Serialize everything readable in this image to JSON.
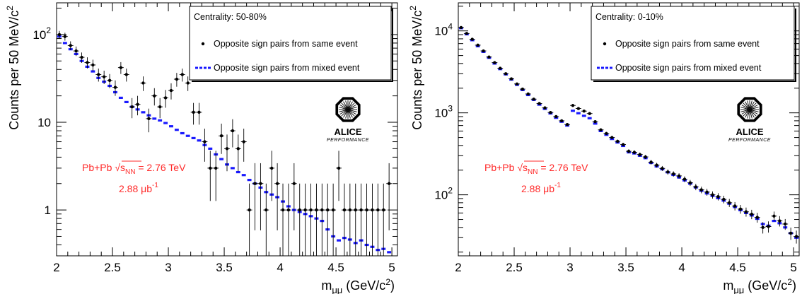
{
  "chart_data": [
    {
      "type": "scatter",
      "xlabel_main": "m",
      "xlabel_sub": "μμ",
      "xlabel_unit": " (GeV/c",
      "xlabel_sup": "2",
      "xlabel_close": ")",
      "ylabel_main": "Counts per 50 MeV/c",
      "ylabel_sup": "2",
      "y_scale": "log",
      "xlim": [
        2,
        5.05
      ],
      "ylim": [
        0.3,
        230
      ],
      "x_ticks": [
        "2",
        "2.5",
        "3",
        "3.5",
        "4",
        "4.5",
        "5"
      ],
      "y_ticks": [
        {
          "base": "1",
          "exp": ""
        },
        {
          "base": "10",
          "exp": ""
        },
        {
          "base": "10",
          "exp": "2"
        }
      ],
      "centrality": "Centrality: 50-80%",
      "legend": [
        {
          "label": "Opposite sign pairs from same event",
          "marker": "dot"
        },
        {
          "label": "Opposite sign pairs from mixed event",
          "marker": "dash"
        }
      ],
      "legend_position": "top-right",
      "annotation_system": "Pb+Pb",
      "annotation_sqrt": "s",
      "annotation_sub": "NN",
      "annotation_energy": "= 2.76 TeV",
      "annotation_lumi_value": "2.88 μb",
      "annotation_lumi_sup": "-1",
      "logo_text": "ALICE",
      "logo_sub": "PERFORMANCE",
      "series": [
        {
          "name": "Opposite sign pairs from same event",
          "color": "#000000",
          "x": [
            2.025,
            2.075,
            2.125,
            2.175,
            2.225,
            2.275,
            2.325,
            2.375,
            2.425,
            2.475,
            2.525,
            2.575,
            2.625,
            2.675,
            2.725,
            2.775,
            2.825,
            2.875,
            2.925,
            2.975,
            3.025,
            3.075,
            3.125,
            3.175,
            3.225,
            3.275,
            3.325,
            3.375,
            3.425,
            3.475,
            3.525,
            3.575,
            3.625,
            3.675,
            3.725,
            3.775,
            3.825,
            3.875,
            3.925,
            3.975,
            4.025,
            4.075,
            4.125,
            4.175,
            4.225,
            4.275,
            4.325,
            4.375,
            4.425,
            4.475,
            4.525,
            4.575,
            4.625,
            4.675,
            4.725,
            4.775,
            4.825,
            4.875,
            4.925,
            4.975
          ],
          "y": [
            100,
            95,
            75,
            65,
            55,
            48,
            45,
            35,
            33,
            30,
            25,
            42,
            35,
            15,
            16,
            28,
            11,
            20,
            15,
            19,
            23,
            31,
            35,
            28,
            13,
            13,
            6,
            3,
            3,
            7,
            5,
            8,
            5,
            6,
            1,
            2,
            2,
            1,
            3,
            2,
            1,
            1,
            2,
            1,
            1,
            1,
            1,
            1,
            1,
            1,
            3,
            1,
            1,
            1,
            1,
            1,
            1,
            1,
            1,
            2
          ]
        },
        {
          "name": "Opposite sign pairs from mixed event",
          "color": "#1a1aff",
          "x": [
            2.025,
            2.075,
            2.125,
            2.175,
            2.225,
            2.275,
            2.325,
            2.375,
            2.425,
            2.475,
            2.525,
            2.575,
            2.625,
            2.675,
            2.725,
            2.775,
            2.825,
            2.875,
            2.925,
            2.975,
            3.025,
            3.075,
            3.125,
            3.175,
            3.225,
            3.275,
            3.325,
            3.375,
            3.425,
            3.475,
            3.525,
            3.575,
            3.625,
            3.675,
            3.725,
            3.775,
            3.825,
            3.875,
            3.925,
            3.975,
            4.025,
            4.075,
            4.125,
            4.175,
            4.225,
            4.275,
            4.325,
            4.375,
            4.425,
            4.475,
            4.525,
            4.575,
            4.625,
            4.675,
            4.725,
            4.775,
            4.825,
            4.875,
            4.925,
            4.975
          ],
          "y": [
            95,
            80,
            68,
            60,
            50,
            43,
            38,
            32,
            29,
            26,
            22,
            19,
            17,
            15,
            14,
            13,
            12,
            11,
            10.5,
            9.8,
            9,
            8.2,
            7.5,
            7,
            6.6,
            6.2,
            5.5,
            5,
            4.3,
            3.8,
            3.3,
            3,
            2.7,
            2.5,
            2.2,
            2,
            1.8,
            1.6,
            1.5,
            1.4,
            1.25,
            1.1,
            1,
            0.95,
            0.9,
            0.85,
            0.8,
            0.75,
            0.6,
            0.5,
            0.45,
            0.48,
            0.46,
            0.42,
            0.45,
            0.4,
            0.38,
            0.35,
            0.36,
            0.33
          ]
        }
      ]
    },
    {
      "type": "scatter",
      "xlabel_main": "m",
      "xlabel_sub": "μμ",
      "xlabel_unit": " (GeV/c",
      "xlabel_sup": "2",
      "xlabel_close": ")",
      "ylabel_main": "Counts per 50 MeV/c",
      "ylabel_sup": "2",
      "y_scale": "log",
      "xlim": [
        2,
        5.05
      ],
      "ylim": [
        18,
        22000
      ],
      "x_ticks": [
        "2",
        "2.5",
        "3",
        "3.5",
        "4",
        "4.5",
        "5"
      ],
      "y_ticks": [
        {
          "base": "10",
          "exp": "2"
        },
        {
          "base": "10",
          "exp": "3"
        },
        {
          "base": "10",
          "exp": "4"
        }
      ],
      "centrality": "Centrality: 0-10%",
      "legend": [
        {
          "label": "Opposite sign pairs from same event",
          "marker": "dot"
        },
        {
          "label": "Opposite sign pairs from mixed event",
          "marker": "dash"
        }
      ],
      "legend_position": "top-right",
      "annotation_system": "Pb+Pb",
      "annotation_sqrt": "s",
      "annotation_sub": "NN",
      "annotation_energy": "= 2.76 TeV",
      "annotation_lumi_value": "2.88 μb",
      "annotation_lumi_sup": "-1",
      "logo_text": "ALICE",
      "logo_sub": "PERFORMANCE",
      "series": [
        {
          "name": "Opposite sign pairs from same event",
          "color": "#000000",
          "x": [
            2.025,
            2.075,
            2.125,
            2.175,
            2.225,
            2.275,
            2.325,
            2.375,
            2.425,
            2.475,
            2.525,
            2.575,
            2.625,
            2.675,
            2.725,
            2.775,
            2.825,
            2.875,
            2.925,
            2.975,
            3.025,
            3.075,
            3.125,
            3.175,
            3.225,
            3.275,
            3.325,
            3.375,
            3.425,
            3.475,
            3.525,
            3.575,
            3.625,
            3.675,
            3.725,
            3.775,
            3.825,
            3.875,
            3.925,
            3.975,
            4.025,
            4.075,
            4.125,
            4.175,
            4.225,
            4.275,
            4.325,
            4.375,
            4.425,
            4.475,
            4.525,
            4.575,
            4.625,
            4.675,
            4.725,
            4.775,
            4.825,
            4.875,
            4.925,
            4.975,
            5.025
          ],
          "y": [
            11000,
            9300,
            7900,
            6700,
            5700,
            4800,
            4100,
            3500,
            3000,
            2600,
            2250,
            1950,
            1700,
            1470,
            1300,
            1150,
            1010,
            900,
            800,
            720,
            1230,
            1130,
            1050,
            980,
            780,
            620,
            560,
            500,
            450,
            410,
            340,
            330,
            310,
            290,
            250,
            230,
            210,
            190,
            180,
            170,
            155,
            140,
            125,
            115,
            108,
            100,
            95,
            88,
            80,
            73,
            67,
            62,
            58,
            53,
            40,
            41,
            55,
            48,
            44,
            34,
            31
          ]
        },
        {
          "name": "Opposite sign pairs from mixed event",
          "color": "#1a1aff",
          "x": [
            2.025,
            2.075,
            2.125,
            2.175,
            2.225,
            2.275,
            2.325,
            2.375,
            2.425,
            2.475,
            2.525,
            2.575,
            2.625,
            2.675,
            2.725,
            2.775,
            2.825,
            2.875,
            2.925,
            2.975,
            3.025,
            3.075,
            3.125,
            3.175,
            3.225,
            3.275,
            3.325,
            3.375,
            3.425,
            3.475,
            3.525,
            3.575,
            3.625,
            3.675,
            3.725,
            3.775,
            3.825,
            3.875,
            3.925,
            3.975,
            4.025,
            4.075,
            4.125,
            4.175,
            4.225,
            4.275,
            4.325,
            4.375,
            4.425,
            4.475,
            4.525,
            4.575,
            4.625,
            4.675,
            4.725,
            4.775,
            4.825,
            4.875,
            4.925,
            4.975,
            5.025
          ],
          "y": [
            10800,
            9100,
            7700,
            6500,
            5550,
            4700,
            4000,
            3420,
            2950,
            2550,
            2200,
            1900,
            1650,
            1440,
            1260,
            1120,
            985,
            870,
            780,
            700,
            1060,
            990,
            920,
            860,
            740,
            600,
            540,
            480,
            435,
            395,
            330,
            320,
            300,
            280,
            245,
            222,
            205,
            188,
            175,
            163,
            150,
            137,
            123,
            112,
            104,
            97,
            91,
            85,
            78,
            71,
            65,
            60,
            56,
            51,
            44,
            42,
            48,
            45,
            40,
            34,
            30
          ]
        }
      ]
    }
  ]
}
